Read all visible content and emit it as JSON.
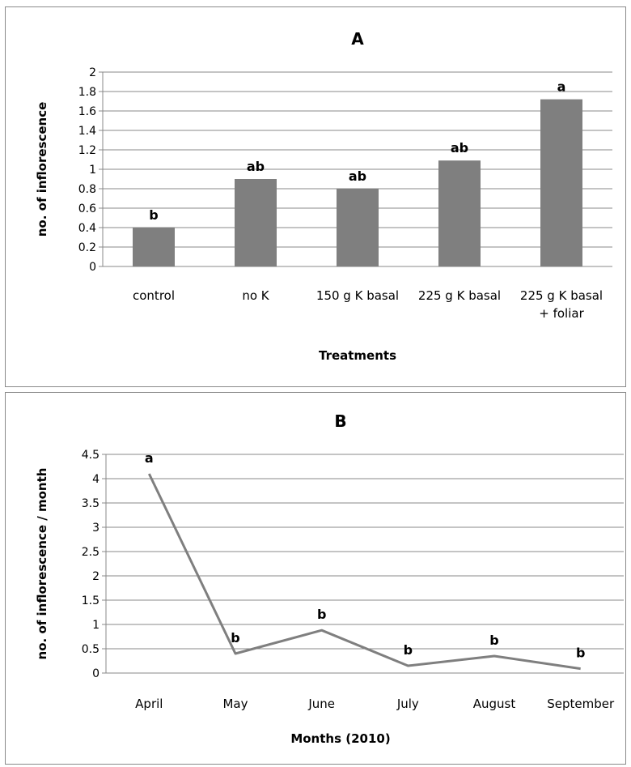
{
  "chart_data": [
    {
      "type": "bar",
      "title": "A",
      "xlabel": "Treatments",
      "ylabel": "no. of inflorescence",
      "categories": [
        [
          "control"
        ],
        [
          "no K"
        ],
        [
          "150 g  K basal"
        ],
        [
          "225 g  K basal"
        ],
        [
          "225 g  K basal",
          "+ foliar"
        ]
      ],
      "values": [
        0.4,
        0.9,
        0.8,
        1.09,
        1.72
      ],
      "data_labels": [
        "b",
        "ab",
        "ab",
        "ab",
        "a"
      ],
      "ylim": [
        0,
        2
      ],
      "yticks": [
        "0",
        "0.2",
        "0.4",
        "0.6",
        "0.8",
        "1",
        "1.2",
        "1.4",
        "1.6",
        "1.8",
        "2"
      ],
      "ytick_values": [
        0,
        0.2,
        0.4,
        0.6,
        0.8,
        1,
        1.2,
        1.4,
        1.6,
        1.8,
        2
      ],
      "grid": true,
      "bar_color": "#7f7f7f"
    },
    {
      "type": "line",
      "title": "B",
      "xlabel": "Months (2010)",
      "ylabel": "no. of inflorescence / month",
      "categories": [
        "April",
        "May",
        "June",
        "July",
        "August",
        "September"
      ],
      "values": [
        4.1,
        0.4,
        0.88,
        0.15,
        0.35,
        0.09
      ],
      "data_labels": [
        "a",
        "b",
        "b",
        "b",
        "b",
        "b"
      ],
      "ylim": [
        0,
        4.5
      ],
      "yticks": [
        "0",
        "0.5",
        "1",
        "1.5",
        "2",
        "2.5",
        "3",
        "3.5",
        "4",
        "4.5"
      ],
      "ytick_values": [
        0,
        0.5,
        1,
        1.5,
        2,
        2.5,
        3,
        3.5,
        4,
        4.5
      ],
      "grid": true,
      "line_color": "#7f7f7f"
    }
  ]
}
